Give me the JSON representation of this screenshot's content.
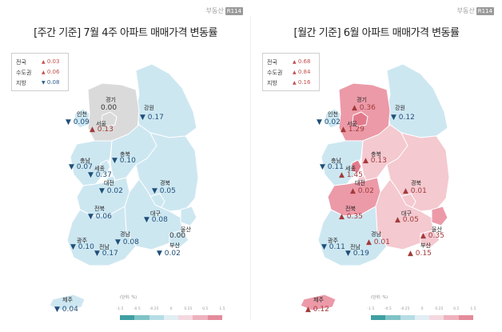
{
  "logo": {
    "text": "부동산",
    "badge": "R114"
  },
  "colors": {
    "land_default": "#cde7f1",
    "land_gray": "#dadada",
    "land_border": "#ffffff",
    "up_light": "#f4c9d0",
    "up_mid": "#ec9aa8",
    "up_strong": "#e27a8c",
    "down_text": "#1f4e79",
    "up_text": "#a33a3a"
  },
  "legend": {
    "unit": "(단위: %)",
    "ticks": [
      "-1.5",
      "-0.5",
      "-0.25",
      "0",
      "0.25",
      "0.5",
      "1.5"
    ],
    "colors": [
      "#3f9fa3",
      "#7fc3c6",
      "#b6dde6",
      "#e1eef3",
      "#f3d9df",
      "#eeb2bd",
      "#e48b9b"
    ]
  },
  "panels": [
    {
      "title": "[주간 기준] 7월 4주 아파트 매매가격 변동률",
      "summary": [
        {
          "label": "전국",
          "dir": "up",
          "value": "0.03"
        },
        {
          "label": "수도권",
          "dir": "up",
          "value": "0.06"
        },
        {
          "label": "지방",
          "dir": "down",
          "value": "0.08"
        }
      ],
      "regions": {
        "gyeonggi": {
          "label": "경기",
          "dir": "flat",
          "value": "0.00",
          "fill": "#dadada"
        },
        "gangwon": {
          "label": "강원",
          "dir": "down",
          "value": "0.17",
          "fill": "#cde7f1"
        },
        "incheon": {
          "label": "인천",
          "dir": "down",
          "value": "0.09",
          "fill": "#cde7f1"
        },
        "seoul": {
          "label": "서울",
          "dir": "up",
          "value": "0.13",
          "fill": "#dadada"
        },
        "chungbuk": {
          "label": "충북",
          "dir": "down",
          "value": "0.10",
          "fill": "#cde7f1"
        },
        "chungnam": {
          "label": "충남",
          "dir": "down",
          "value": "0.07",
          "fill": "#cde7f1"
        },
        "sejong": {
          "label": "세종",
          "dir": "down",
          "value": "0.37",
          "fill": "#cde7f1"
        },
        "daejeon": {
          "label": "대전",
          "dir": "down",
          "value": "0.02",
          "fill": "#cde7f1"
        },
        "gyeongbuk": {
          "label": "경북",
          "dir": "down",
          "value": "0.05",
          "fill": "#cde7f1"
        },
        "jeonbuk": {
          "label": "전북",
          "dir": "down",
          "value": "0.06",
          "fill": "#cde7f1"
        },
        "daegu": {
          "label": "대구",
          "dir": "down",
          "value": "0.08",
          "fill": "#cde7f1"
        },
        "ulsan": {
          "label": "울산",
          "dir": "flat",
          "value": "0.00",
          "fill": "#cde7f1"
        },
        "gyeongnam": {
          "label": "경남",
          "dir": "down",
          "value": "0.08",
          "fill": "#cde7f1"
        },
        "gwangju": {
          "label": "광주",
          "dir": "down",
          "value": "0.10",
          "fill": "#cde7f1"
        },
        "jeonnam": {
          "label": "전남",
          "dir": "down",
          "value": "0.17",
          "fill": "#cde7f1"
        },
        "busan": {
          "label": "부산",
          "dir": "down",
          "value": "0.02",
          "fill": "#cde7f1"
        },
        "jeju": {
          "label": "제주",
          "dir": "down",
          "value": "0.04",
          "fill": "#cde7f1"
        }
      }
    },
    {
      "title": "[월간 기준] 6월 아파트 매매가격 변동률",
      "summary": [
        {
          "label": "전국",
          "dir": "up",
          "value": "0.68"
        },
        {
          "label": "수도권",
          "dir": "up",
          "value": "0.84"
        },
        {
          "label": "지방",
          "dir": "up",
          "value": "0.16"
        }
      ],
      "regions": {
        "gyeonggi": {
          "label": "경기",
          "dir": "up",
          "value": "0.36",
          "fill": "#ec9aa8"
        },
        "gangwon": {
          "label": "강원",
          "dir": "down",
          "value": "0.12",
          "fill": "#cde7f1"
        },
        "incheon": {
          "label": "인천",
          "dir": "down",
          "value": "0.02",
          "fill": "#cde7f1"
        },
        "seoul": {
          "label": "서울",
          "dir": "up",
          "value": "1.29",
          "fill": "#e27a8c"
        },
        "chungbuk": {
          "label": "충북",
          "dir": "up",
          "value": "0.13",
          "fill": "#f4c9d0"
        },
        "chungnam": {
          "label": "충남",
          "dir": "down",
          "value": "0.11",
          "fill": "#cde7f1"
        },
        "sejong": {
          "label": "세종",
          "dir": "up",
          "value": "1.45",
          "fill": "#e27a8c"
        },
        "daejeon": {
          "label": "대전",
          "dir": "up",
          "value": "0.02",
          "fill": "#f4c9d0"
        },
        "gyeongbuk": {
          "label": "경북",
          "dir": "up",
          "value": "0.01",
          "fill": "#f4c9d0"
        },
        "jeonbuk": {
          "label": "전북",
          "dir": "up",
          "value": "0.35",
          "fill": "#ec9aa8"
        },
        "daegu": {
          "label": "대구",
          "dir": "up",
          "value": "0.05",
          "fill": "#f4c9d0"
        },
        "ulsan": {
          "label": "울산",
          "dir": "up",
          "value": "0.35",
          "fill": "#ec9aa8"
        },
        "gyeongnam": {
          "label": "경남",
          "dir": "up",
          "value": "0.01",
          "fill": "#f4c9d0"
        },
        "gwangju": {
          "label": "광주",
          "dir": "down",
          "value": "0.11",
          "fill": "#cde7f1"
        },
        "jeonnam": {
          "label": "전남",
          "dir": "down",
          "value": "0.19",
          "fill": "#cde7f1"
        },
        "busan": {
          "label": "부산",
          "dir": "up",
          "value": "0.15",
          "fill": "#f4c9d0"
        },
        "jeju": {
          "label": "제주",
          "dir": "up",
          "value": "0.12",
          "fill": "#ec9aa8"
        }
      }
    }
  ]
}
